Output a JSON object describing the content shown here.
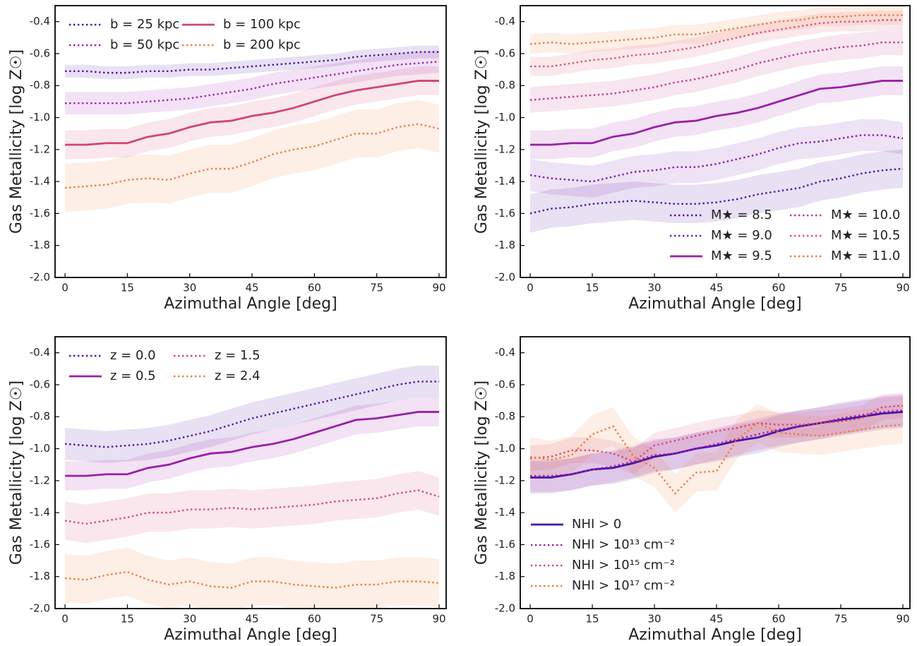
{
  "chart_data": [
    {
      "type": "line",
      "xlabel": "Azimuthal Angle [deg]",
      "ylabel": "Gas Metallicity [log Z☉]",
      "x": [
        0,
        5,
        10,
        15,
        20,
        25,
        30,
        35,
        40,
        45,
        50,
        55,
        60,
        65,
        70,
        75,
        80,
        85,
        90
      ],
      "xlim": [
        -2.4,
        91.7
      ],
      "xticks": [
        0,
        15,
        30,
        45,
        60,
        75,
        90
      ],
      "ylim": [
        -2.0,
        -0.3
      ],
      "yticks": [
        {
          "value": -2.0,
          "label": "-2.0"
        },
        -1.8,
        -1.6,
        -1.4,
        -1.2,
        {
          "value": -1.0,
          "label": "-1.0"
        },
        -0.8,
        -0.6,
        -0.4
      ],
      "legend": "upper left",
      "legend_columns": 2,
      "series": [
        {
          "name": "b = 25 kpc",
          "color": "#4a12a6",
          "dash": "dotted",
          "band": 0.04,
          "values": [
            -0.71,
            -0.71,
            -0.72,
            -0.72,
            -0.71,
            -0.71,
            -0.7,
            -0.7,
            -0.69,
            -0.68,
            -0.67,
            -0.66,
            -0.65,
            -0.64,
            -0.62,
            -0.61,
            -0.6,
            -0.59,
            -0.59
          ]
        },
        {
          "name": "b = 50 kpc",
          "color": "#a020b0",
          "dash": "dotted",
          "band": 0.07,
          "values": [
            -0.91,
            -0.91,
            -0.91,
            -0.91,
            -0.9,
            -0.89,
            -0.88,
            -0.86,
            -0.84,
            -0.82,
            -0.79,
            -0.77,
            -0.75,
            -0.73,
            -0.71,
            -0.69,
            -0.67,
            -0.66,
            -0.65
          ]
        },
        {
          "name": "b = 100 kpc",
          "color": "#cf4577",
          "dash": "solid",
          "band": 0.09,
          "values": [
            -1.17,
            -1.17,
            -1.16,
            -1.16,
            -1.12,
            -1.1,
            -1.06,
            -1.03,
            -1.02,
            -0.99,
            -0.97,
            -0.94,
            -0.9,
            -0.86,
            -0.83,
            -0.81,
            -0.79,
            -0.77,
            -0.77
          ]
        },
        {
          "name": "b = 200 kpc",
          "color": "#f07a3c",
          "dash": "dotted",
          "band": 0.15,
          "values": [
            -1.44,
            -1.43,
            -1.42,
            -1.39,
            -1.38,
            -1.39,
            -1.35,
            -1.32,
            -1.32,
            -1.28,
            -1.23,
            -1.2,
            -1.18,
            -1.14,
            -1.1,
            -1.1,
            -1.06,
            -1.04,
            -1.07
          ]
        }
      ]
    },
    {
      "type": "line",
      "xlabel": "Azimuthal Angle [deg]",
      "ylabel": "Gas Metallicity [log Z☉]",
      "x": [
        0,
        5,
        10,
        15,
        20,
        25,
        30,
        35,
        40,
        45,
        50,
        55,
        60,
        65,
        70,
        75,
        80,
        85,
        90
      ],
      "xlim": [
        -2.4,
        91.7
      ],
      "xticks": [
        0,
        15,
        30,
        45,
        60,
        75,
        90
      ],
      "ylim": [
        -2.0,
        -0.3
      ],
      "yticks": [
        {
          "value": -2.0,
          "label": "-2.0"
        },
        -1.8,
        -1.6,
        -1.4,
        -1.2,
        {
          "value": -1.0,
          "label": "-1.0"
        },
        -0.8,
        -0.6,
        -0.4
      ],
      "legend": "lower right",
      "legend_columns": 2,
      "series": [
        {
          "name": "M★ = 8.5",
          "color": "#4a12a6",
          "dash": "dotted",
          "band": 0.12,
          "values": [
            -1.6,
            -1.57,
            -1.56,
            -1.54,
            -1.53,
            -1.52,
            -1.53,
            -1.54,
            -1.54,
            -1.53,
            -1.51,
            -1.48,
            -1.46,
            -1.44,
            -1.4,
            -1.38,
            -1.35,
            -1.33,
            -1.32
          ]
        },
        {
          "name": "M★ = 9.0",
          "color": "#7a1cb0",
          "dash": "dotted",
          "band": 0.1,
          "values": [
            -1.36,
            -1.38,
            -1.39,
            -1.4,
            -1.37,
            -1.34,
            -1.33,
            -1.31,
            -1.31,
            -1.29,
            -1.26,
            -1.23,
            -1.19,
            -1.16,
            -1.15,
            -1.13,
            -1.11,
            -1.11,
            -1.13
          ]
        },
        {
          "name": "M★ = 9.5",
          "color": "#9a1fa8",
          "dash": "solid",
          "band": 0.09,
          "values": [
            -1.17,
            -1.17,
            -1.16,
            -1.16,
            -1.12,
            -1.1,
            -1.06,
            -1.03,
            -1.02,
            -0.99,
            -0.97,
            -0.94,
            -0.9,
            -0.86,
            -0.82,
            -0.81,
            -0.79,
            -0.77,
            -0.77
          ]
        },
        {
          "name": "M★ = 10.0",
          "color": "#c2358a",
          "dash": "dotted",
          "band": 0.08,
          "values": [
            -0.89,
            -0.88,
            -0.87,
            -0.86,
            -0.85,
            -0.83,
            -0.81,
            -0.78,
            -0.76,
            -0.73,
            -0.7,
            -0.66,
            -0.63,
            -0.6,
            -0.58,
            -0.56,
            -0.55,
            -0.53,
            -0.53
          ]
        },
        {
          "name": "M★ = 10.5",
          "color": "#e04e6e",
          "dash": "dotted",
          "band": 0.06,
          "values": [
            -0.68,
            -0.68,
            -0.66,
            -0.64,
            -0.63,
            -0.61,
            -0.6,
            -0.58,
            -0.56,
            -0.53,
            -0.5,
            -0.47,
            -0.45,
            -0.43,
            -0.41,
            -0.4,
            -0.4,
            -0.39,
            -0.39
          ]
        },
        {
          "name": "M★ = 11.0",
          "color": "#f07a3c",
          "dash": "dotted",
          "band": 0.06,
          "values": [
            -0.54,
            -0.53,
            -0.54,
            -0.53,
            -0.52,
            -0.51,
            -0.5,
            -0.48,
            -0.48,
            -0.46,
            -0.44,
            -0.42,
            -0.4,
            -0.39,
            -0.37,
            -0.37,
            -0.36,
            -0.36,
            -0.36
          ]
        }
      ]
    },
    {
      "type": "line",
      "xlabel": "Azimuthal Angle [deg]",
      "ylabel": "Gas Metallicity [log Z☉]",
      "x": [
        0,
        5,
        10,
        15,
        20,
        25,
        30,
        35,
        40,
        45,
        50,
        55,
        60,
        65,
        70,
        75,
        80,
        85,
        90
      ],
      "xlim": [
        -2.4,
        91.7
      ],
      "xticks": [
        0,
        15,
        30,
        45,
        60,
        75,
        90
      ],
      "ylim": [
        -2.0,
        -0.3
      ],
      "yticks": [
        {
          "value": -2.0,
          "label": "-2.0"
        },
        -1.8,
        -1.6,
        -1.4,
        -1.2,
        {
          "value": -1.0,
          "label": "-1.0"
        },
        -0.8,
        -0.6,
        -0.4
      ],
      "legend": "upper left",
      "legend_columns": 2,
      "series": [
        {
          "name": "z = 0.0",
          "color": "#4a12a6",
          "dash": "dotted",
          "band": 0.1,
          "values": [
            -0.97,
            -0.98,
            -0.99,
            -0.98,
            -0.97,
            -0.95,
            -0.92,
            -0.89,
            -0.85,
            -0.81,
            -0.78,
            -0.75,
            -0.72,
            -0.69,
            -0.66,
            -0.63,
            -0.6,
            -0.58,
            -0.58
          ]
        },
        {
          "name": "z = 0.5",
          "color": "#9a1fa8",
          "dash": "solid",
          "band": 0.09,
          "values": [
            -1.17,
            -1.17,
            -1.16,
            -1.16,
            -1.12,
            -1.1,
            -1.06,
            -1.03,
            -1.02,
            -0.99,
            -0.97,
            -0.94,
            -0.9,
            -0.86,
            -0.82,
            -0.81,
            -0.79,
            -0.77,
            -0.77
          ]
        },
        {
          "name": "z = 1.5",
          "color": "#d84575",
          "dash": "dotted",
          "band": 0.12,
          "values": [
            -1.45,
            -1.47,
            -1.45,
            -1.43,
            -1.4,
            -1.4,
            -1.38,
            -1.38,
            -1.37,
            -1.38,
            -1.37,
            -1.36,
            -1.35,
            -1.33,
            -1.32,
            -1.31,
            -1.28,
            -1.26,
            -1.3
          ]
        },
        {
          "name": "z = 2.4",
          "color": "#f07a3c",
          "dash": "dotted",
          "band": 0.15,
          "values": [
            -1.81,
            -1.82,
            -1.79,
            -1.77,
            -1.82,
            -1.85,
            -1.83,
            -1.86,
            -1.87,
            -1.83,
            -1.83,
            -1.85,
            -1.86,
            -1.87,
            -1.85,
            -1.85,
            -1.83,
            -1.83,
            -1.84
          ]
        }
      ]
    },
    {
      "type": "line",
      "xlabel": "Azimuthal Angle [deg]",
      "ylabel": "Gas Metallicity [log Z☉]",
      "x": [
        0,
        5,
        10,
        15,
        20,
        25,
        30,
        35,
        40,
        45,
        50,
        55,
        60,
        65,
        70,
        75,
        80,
        85,
        90
      ],
      "xlim": [
        -2.4,
        91.7
      ],
      "xticks": [
        0,
        15,
        30,
        45,
        60,
        75,
        90
      ],
      "ylim": [
        -2.0,
        -0.3
      ],
      "yticks": [
        {
          "value": -2.0,
          "label": "-2.0"
        },
        -1.8,
        -1.6,
        -1.4,
        -1.2,
        {
          "value": -1.0,
          "label": "-1.0"
        },
        -0.8,
        -0.6,
        -0.4
      ],
      "legend": "lower left",
      "legend_columns": 1,
      "series": [
        {
          "name": "NHI > 0",
          "color": "#4a12a6",
          "dash": "solid",
          "band": 0.1,
          "values": [
            -1.18,
            -1.18,
            -1.16,
            -1.13,
            -1.12,
            -1.09,
            -1.05,
            -1.03,
            -1.0,
            -0.98,
            -0.95,
            -0.93,
            -0.89,
            -0.86,
            -0.84,
            -0.82,
            -0.8,
            -0.78,
            -0.77
          ]
        },
        {
          "name": "NHI > 10¹³ cm⁻²",
          "color": "#9a1fa8",
          "dash": "dotted",
          "band": 0.1,
          "values": [
            -1.17,
            -1.17,
            -1.16,
            -1.13,
            -1.11,
            -1.08,
            -1.04,
            -1.03,
            -1.0,
            -0.97,
            -0.94,
            -0.91,
            -0.88,
            -0.86,
            -0.84,
            -0.81,
            -0.79,
            -0.77,
            -0.76
          ]
        },
        {
          "name": "NHI > 10¹⁵ cm⁻²",
          "color": "#d84575",
          "dash": "dotted",
          "band": 0.08,
          "values": [
            -1.06,
            -1.05,
            -1.01,
            -1.01,
            -1.03,
            -1.08,
            -0.98,
            -0.95,
            -0.92,
            -0.89,
            -0.87,
            -0.84,
            -0.85,
            -0.85,
            -0.84,
            -0.83,
            -0.81,
            -0.74,
            -0.73
          ]
        },
        {
          "name": "NHI > 10¹⁷ cm⁻²",
          "color": "#f07a3c",
          "dash": "dotted",
          "band": 0.12,
          "values": [
            -1.05,
            -1.07,
            -1.04,
            -0.91,
            -0.86,
            -1.05,
            -1.12,
            -1.28,
            -1.15,
            -1.14,
            -0.94,
            -0.84,
            -0.9,
            -0.91,
            -0.92,
            -0.9,
            -0.88,
            -0.86,
            -0.85
          ]
        }
      ]
    }
  ]
}
